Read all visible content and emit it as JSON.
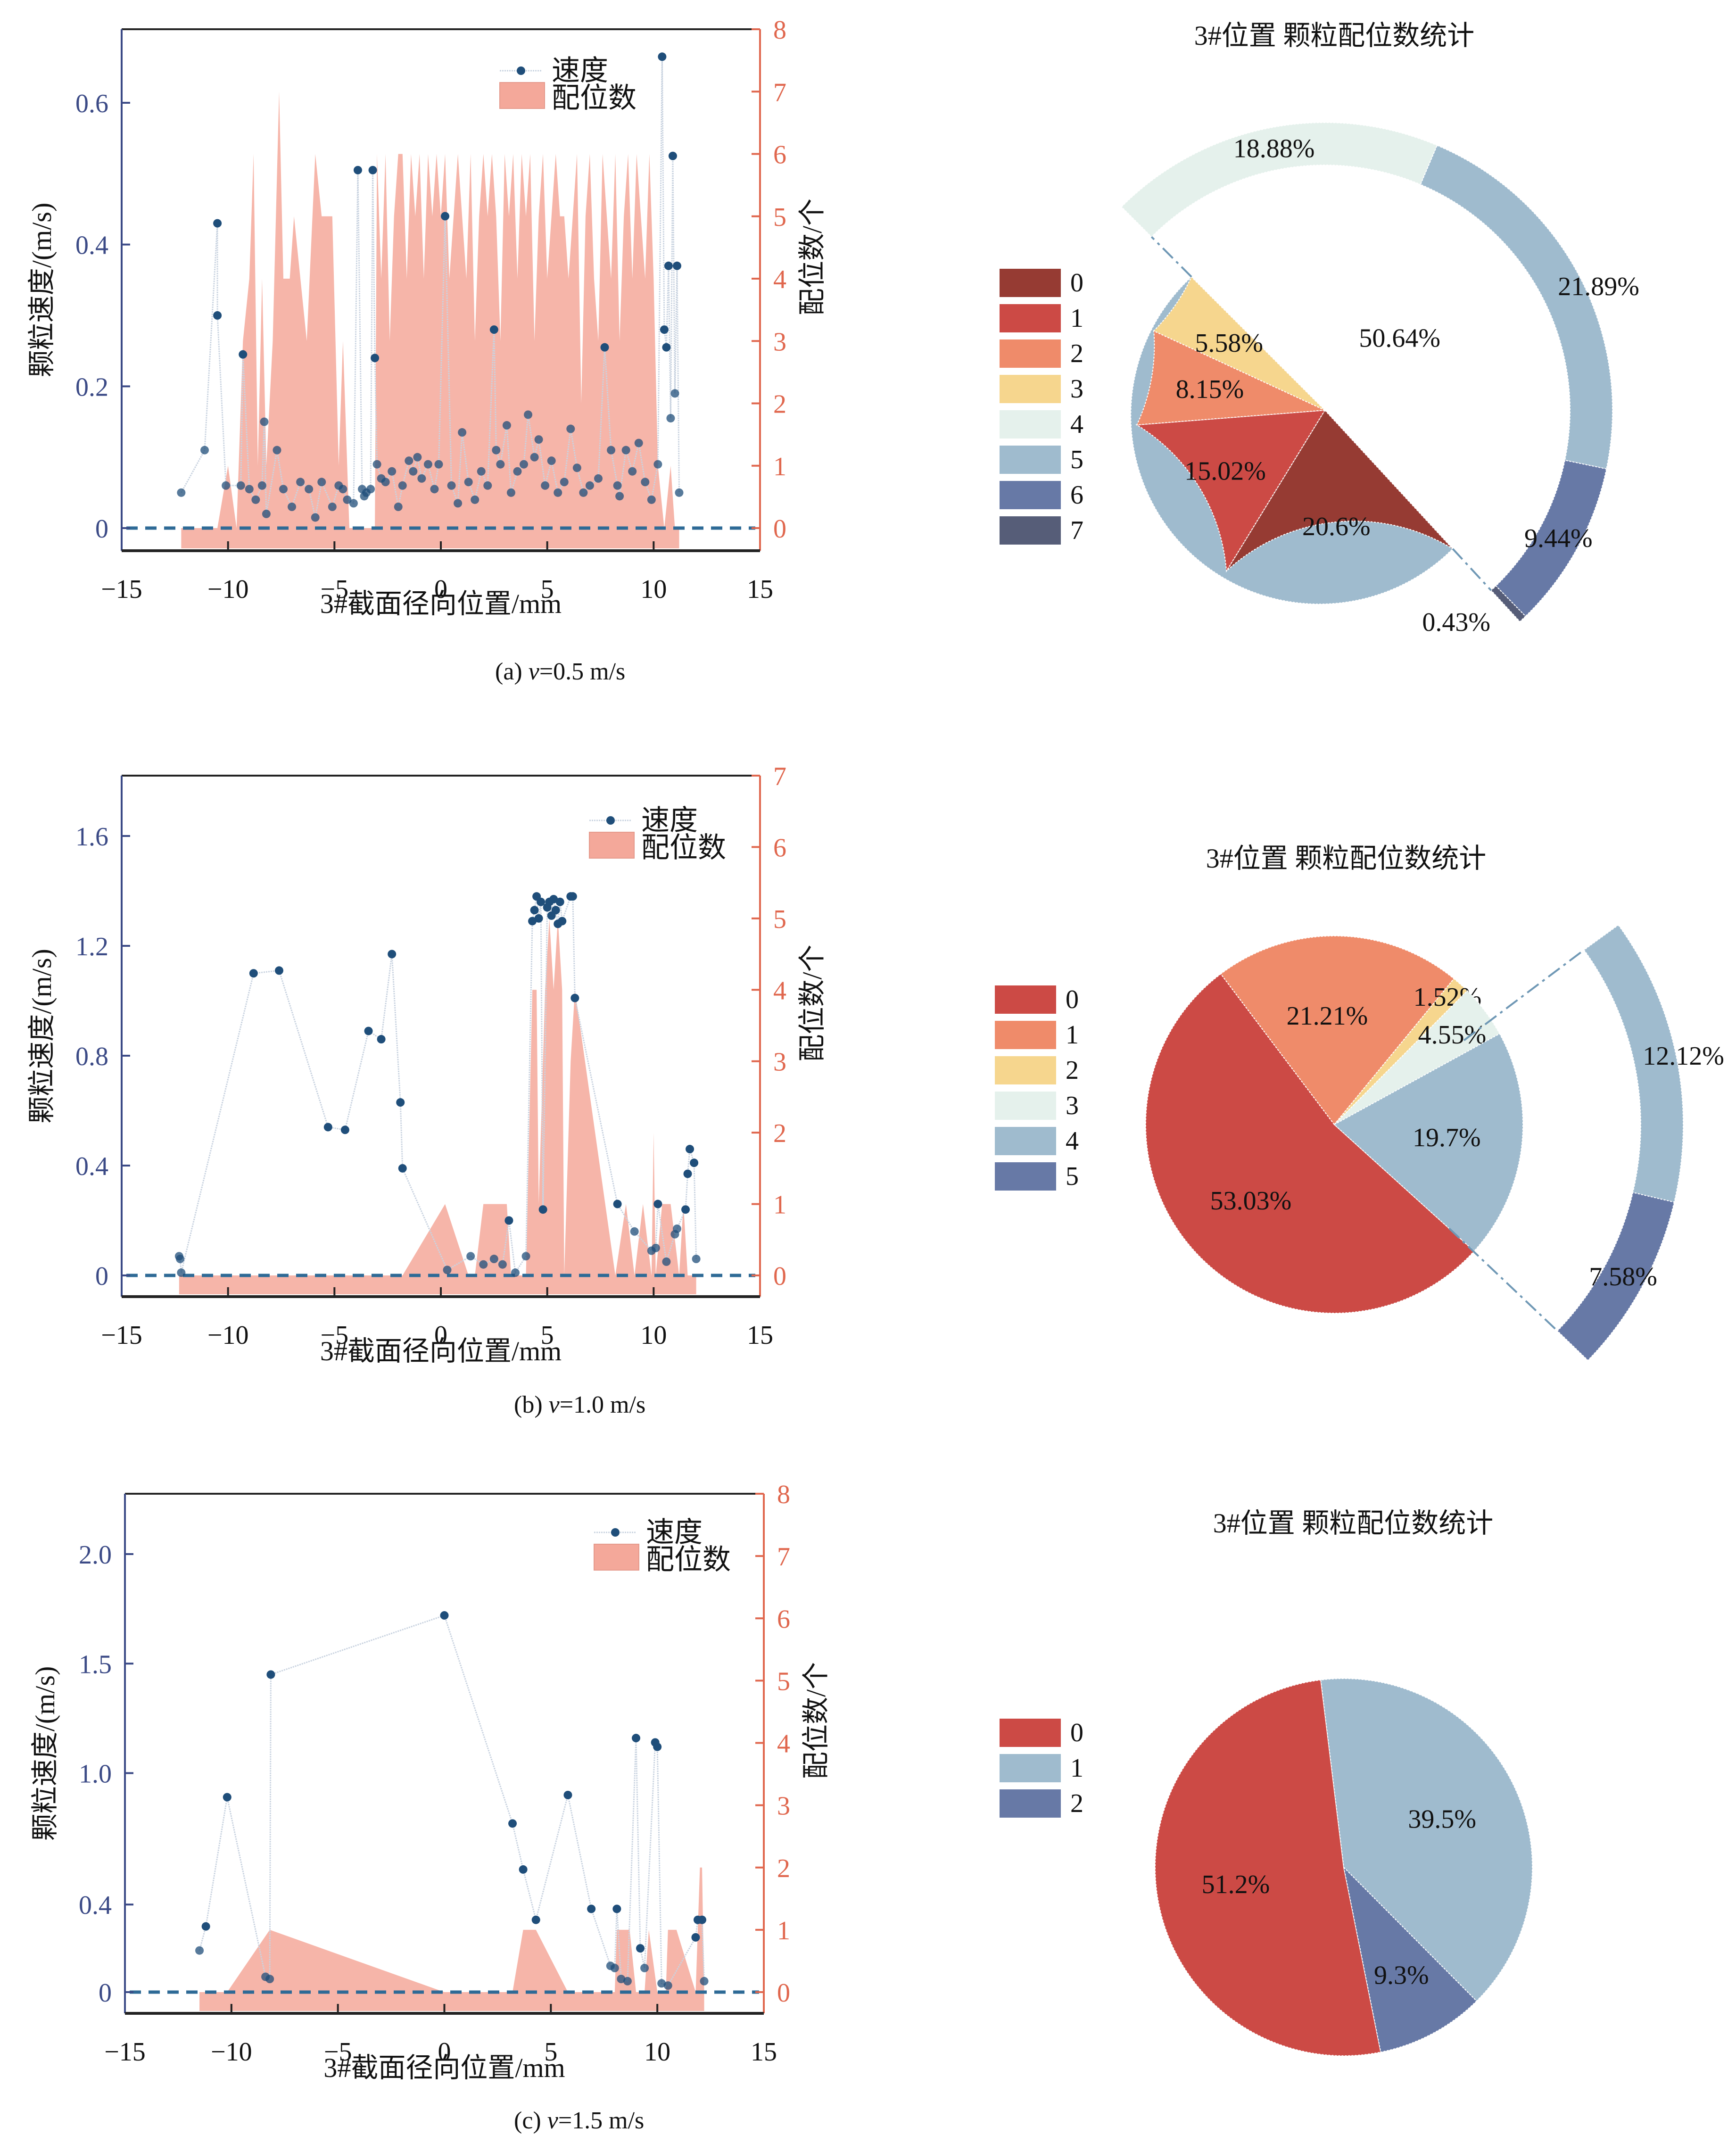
{
  "figure": {
    "panels": [
      {
        "id": "a",
        "caption_prefix": "(a) ",
        "caption_var": "v",
        "caption_suffix": "=0.5 m/s"
      },
      {
        "id": "b",
        "caption_prefix": "(b) ",
        "caption_var": "v",
        "caption_suffix": "=1.0 m/s"
      },
      {
        "id": "c",
        "caption_prefix": "(c) ",
        "caption_var": "v",
        "caption_suffix": "=1.5 m/s"
      }
    ]
  },
  "colors": {
    "speed_line": "#c9d3e0",
    "speed_marker": "#1f4e7a",
    "coord_fill": "#f4a89a",
    "left_axis": "#3b4a86",
    "right_axis": "#e0674e",
    "zero_line": "#2e6a96",
    "coord_palette": [
      "#963b33",
      "#cc4a45",
      "#ef8b6a",
      "#f6d68e",
      "#e5f1ec",
      "#9fbbce",
      "#6779a6",
      "#565d78"
    ]
  },
  "chart_data": [
    {
      "type": "line",
      "panel": "a",
      "title": "",
      "xlabel": "3#截面径向位置/mm",
      "ylabel": "颗粒速度/(m/s)",
      "y2label": "配位数/个",
      "xlim": [
        -15,
        15
      ],
      "ylim": [
        -0.03,
        0.72
      ],
      "y2lim": [
        -0.33,
        8
      ],
      "xticks": [
        -15,
        -10,
        -5,
        0,
        5,
        10,
        15
      ],
      "xtick_labels": [
        "−15",
        "−10",
        "−5",
        "0",
        "5",
        "10",
        "15"
      ],
      "yticks": [
        0,
        0.2,
        0.4,
        0.6
      ],
      "ytick_labels": [
        "0",
        "0.2",
        "0.4",
        "0.6"
      ],
      "y2ticks": [
        0,
        1,
        2,
        3,
        4,
        5,
        6,
        7,
        8
      ],
      "y2tick_labels": [
        "0",
        "1",
        "2",
        "3",
        "4",
        "5",
        "6",
        "7",
        "8"
      ],
      "legend": [
        "速度",
        "配位数"
      ],
      "legend_position": "top-right",
      "series": [
        {
          "name": "速度",
          "kind": "line-marker",
          "x": [
            -12.2,
            -11.1,
            -10.5,
            -10.5,
            -10.1,
            -9.4,
            -9.3,
            -9.0,
            -8.7,
            -8.4,
            -8.3,
            -8.2,
            -7.7,
            -7.4,
            -7.0,
            -6.6,
            -6.2,
            -5.9,
            -5.6,
            -5.1,
            -4.8,
            -4.6,
            -4.4,
            -4.1,
            -3.9,
            -3.7,
            -3.6,
            -3.5,
            -3.3,
            -3.2,
            -3.1,
            -3.0,
            -2.8,
            -2.6,
            -2.3,
            -2.0,
            -1.8,
            -1.5,
            -1.3,
            -1.1,
            -0.9,
            -0.6,
            -0.3,
            -0.1,
            0.2,
            0.5,
            0.8,
            1.0,
            1.3,
            1.6,
            1.9,
            2.2,
            2.5,
            2.6,
            2.8,
            3.1,
            3.3,
            3.6,
            3.9,
            4.1,
            4.4,
            4.6,
            4.9,
            5.2,
            5.5,
            5.8,
            6.1,
            6.4,
            6.7,
            7.0,
            7.4,
            7.7,
            8.0,
            8.3,
            8.4,
            8.7,
            9.0,
            9.3,
            9.6,
            9.9,
            10.2,
            10.4,
            10.5,
            10.6,
            10.7,
            10.8,
            10.9,
            11.0,
            11.1,
            11.2
          ],
          "y": [
            0.05,
            0.11,
            0.43,
            0.3,
            0.06,
            0.06,
            0.245,
            0.055,
            0.04,
            0.06,
            0.15,
            0.02,
            0.11,
            0.055,
            0.03,
            0.065,
            0.055,
            0.015,
            0.065,
            0.03,
            0.06,
            0.055,
            0.04,
            0.035,
            0.505,
            0.055,
            0.045,
            0.05,
            0.055,
            0.505,
            0.24,
            0.09,
            0.07,
            0.065,
            0.08,
            0.03,
            0.06,
            0.095,
            0.08,
            0.1,
            0.07,
            0.09,
            0.055,
            0.09,
            0.44,
            0.06,
            0.035,
            0.135,
            0.065,
            0.04,
            0.08,
            0.06,
            0.28,
            0.11,
            0.09,
            0.145,
            0.05,
            0.08,
            0.09,
            0.16,
            0.1,
            0.125,
            0.06,
            0.095,
            0.05,
            0.065,
            0.14,
            0.085,
            0.05,
            0.06,
            0.07,
            0.255,
            0.11,
            0.06,
            0.045,
            0.11,
            0.08,
            0.12,
            0.065,
            0.04,
            0.09,
            0.665,
            0.28,
            0.255,
            0.37,
            0.155,
            0.525,
            0.19,
            0.37,
            0.05
          ]
        },
        {
          "name": "配位数",
          "kind": "area",
          "x": [
            -12.2,
            -10.5,
            -10.0,
            -9.6,
            -9.3,
            -9.0,
            -8.8,
            -8.6,
            -8.4,
            -8.2,
            -7.9,
            -7.6,
            -7.4,
            -7.1,
            -6.9,
            -6.6,
            -6.3,
            -5.9,
            -5.6,
            -5.1,
            -4.8,
            -4.6,
            -4.3,
            -4.1,
            -3.9,
            -3.7,
            -3.6,
            -3.5,
            -3.3,
            -3.2,
            -3.1,
            -3.0,
            -2.9,
            -2.8,
            -2.6,
            -2.4,
            -2.2,
            -2.0,
            -1.8,
            -1.6,
            -1.4,
            -1.2,
            -1.0,
            -0.8,
            -0.6,
            -0.4,
            -0.2,
            0.0,
            0.2,
            0.4,
            0.6,
            0.8,
            1.0,
            1.2,
            1.4,
            1.6,
            1.8,
            2.0,
            2.2,
            2.4,
            2.6,
            2.8,
            3.0,
            3.2,
            3.4,
            3.6,
            3.8,
            4.0,
            4.2,
            4.4,
            4.6,
            4.8,
            5.0,
            5.2,
            5.4,
            5.6,
            5.8,
            6.0,
            6.2,
            6.4,
            6.6,
            6.8,
            7.0,
            7.2,
            7.4,
            7.6,
            7.8,
            8.0,
            8.2,
            8.4,
            8.6,
            8.8,
            9.0,
            9.2,
            9.4,
            9.6,
            9.8,
            10.0,
            10.2,
            10.5,
            10.8,
            11.0,
            11.2
          ],
          "y": [
            0,
            0,
            1,
            0,
            3,
            4,
            6,
            1,
            4,
            1,
            3,
            7,
            4,
            4,
            5,
            4,
            3,
            6,
            5,
            5,
            1,
            3,
            0,
            0,
            0,
            0,
            0,
            0,
            0,
            0,
            0,
            6,
            5,
            4,
            6,
            3,
            5,
            6,
            6,
            4,
            6,
            5,
            6,
            4,
            6,
            5,
            6,
            5,
            6,
            4,
            5,
            6,
            5,
            4,
            6,
            3,
            5,
            6,
            5,
            6,
            5,
            3,
            6,
            5,
            6,
            4,
            6,
            5,
            6,
            3,
            5,
            6,
            4,
            5,
            6,
            5,
            5,
            4,
            5,
            6,
            2,
            5,
            6,
            4,
            3,
            6,
            5,
            4,
            6,
            3,
            5,
            6,
            4,
            6,
            5,
            4,
            6,
            4,
            1,
            0,
            1,
            0,
            0
          ]
        }
      ]
    },
    {
      "type": "pie",
      "panel": "a",
      "title": "3#位置  颗粒配位数统计",
      "legend": [
        "0",
        "1",
        "2",
        "3",
        "4",
        "5",
        "6",
        "7"
      ],
      "legend_position": "left",
      "inner_pie": {
        "labels": [
          "0",
          "1",
          "2",
          "3",
          "5"
        ],
        "values": [
          20.6,
          15.02,
          8.15,
          5.58,
          50.64
        ],
        "value_labels": [
          "20.6%",
          "15.02%",
          "8.15%",
          "5.58%",
          "50.64%"
        ],
        "color_index": [
          0,
          1,
          2,
          3,
          5
        ]
      },
      "outer_ring": {
        "note": "breakdown of combined slice into 4-7",
        "labels": [
          "4",
          "5",
          "6",
          "7"
        ],
        "values": [
          18.88,
          21.89,
          9.44,
          0.43
        ],
        "value_labels": [
          "18.88%",
          "21.89%",
          "9.44%",
          "0.43%"
        ],
        "color_index": [
          4,
          5,
          6,
          7
        ]
      }
    },
    {
      "type": "line",
      "panel": "b",
      "title": "",
      "xlabel": "3#截面径向位置/mm",
      "ylabel": "颗粒速度/(m/s)",
      "y2label": "配位数/个",
      "xlim": [
        -15,
        15
      ],
      "ylim": [
        -0.06,
        1.8
      ],
      "y2lim": [
        -0.25,
        7
      ],
      "xticks": [
        -15,
        -10,
        -5,
        0,
        5,
        10,
        15
      ],
      "xtick_labels": [
        "−15",
        "−10",
        "−5",
        "0",
        "5",
        "10",
        "15"
      ],
      "yticks": [
        0,
        0.4,
        0.8,
        1.2,
        1.6
      ],
      "ytick_labels": [
        "0",
        "0.4",
        "0.8",
        "1.2",
        "1.6"
      ],
      "y2ticks": [
        0,
        1,
        2,
        3,
        4,
        5,
        6,
        7
      ],
      "y2tick_labels": [
        "0",
        "1",
        "2",
        "3",
        "4",
        "5",
        "6",
        "7"
      ],
      "legend": [
        "速度",
        "配位数"
      ],
      "legend_position": "top-right",
      "series": [
        {
          "name": "速度",
          "kind": "line-marker",
          "x": [
            -12.3,
            -12.25,
            -12.2,
            -8.8,
            -7.6,
            -5.3,
            -4.5,
            -3.4,
            -2.8,
            -2.3,
            -1.9,
            -1.8,
            0.3,
            1.4,
            2.0,
            2.5,
            2.9,
            3.2,
            3.5,
            4.0,
            4.3,
            4.4,
            4.5,
            4.6,
            4.7,
            4.8,
            5.0,
            5.1,
            5.2,
            5.3,
            5.4,
            5.5,
            5.6,
            5.7,
            6.1,
            6.2,
            6.3,
            8.3,
            9.1,
            9.9,
            10.1,
            10.2,
            10.6,
            11.0,
            11.1,
            11.5,
            11.6,
            11.7,
            11.9,
            12.0
          ],
          "y": [
            0.07,
            0.06,
            0.01,
            1.1,
            1.11,
            0.54,
            0.53,
            0.89,
            0.86,
            1.17,
            0.63,
            0.39,
            0.02,
            0.07,
            0.04,
            0.06,
            0.04,
            0.2,
            0.01,
            0.07,
            1.29,
            1.33,
            1.38,
            1.3,
            1.36,
            0.24,
            1.34,
            1.36,
            1.31,
            1.37,
            1.33,
            1.28,
            1.36,
            1.29,
            1.38,
            1.38,
            1.01,
            0.26,
            0.16,
            0.09,
            0.1,
            0.26,
            0.05,
            0.15,
            0.17,
            0.24,
            0.37,
            0.46,
            0.41,
            0.06
          ]
        },
        {
          "name": "配位数",
          "kind": "area",
          "x": [
            -12.3,
            -1.8,
            0.2,
            1.3,
            1.6,
            2.0,
            3.1,
            3.3,
            4.0,
            4.3,
            4.5,
            4.6,
            4.9,
            5.1,
            5.3,
            5.5,
            5.7,
            5.8,
            6.1,
            6.3,
            8.2,
            8.7,
            9.1,
            9.5,
            9.9,
            10.0,
            10.1,
            10.4,
            10.5,
            10.8,
            11.2,
            11.4,
            11.6,
            12.0
          ],
          "y": [
            0,
            0,
            1,
            0,
            0,
            1,
            1,
            0,
            0,
            4,
            4,
            1,
            4,
            5,
            4,
            5,
            4,
            0,
            3,
            4,
            0,
            1,
            0,
            1,
            0,
            2,
            0,
            1,
            1,
            1,
            0,
            1,
            0,
            0
          ]
        }
      ]
    },
    {
      "type": "pie",
      "panel": "b",
      "title": "3#位置  颗粒配位数统计",
      "legend": [
        "0",
        "1",
        "2",
        "3",
        "4",
        "5"
      ],
      "legend_position": "left",
      "inner_pie": {
        "labels": [
          "0",
          "1",
          "2",
          "3",
          "4"
        ],
        "values": [
          53.03,
          21.21,
          1.52,
          4.55,
          19.7
        ],
        "value_labels": [
          "53.03%",
          "21.21%",
          "1.52%",
          "4.55%",
          "19.7%"
        ],
        "color_index": [
          1,
          2,
          3,
          4,
          5
        ]
      },
      "outer_ring": {
        "note": "breakdown of combined slice into 4-5",
        "labels": [
          "4",
          "5"
        ],
        "values": [
          12.12,
          7.58
        ],
        "value_labels": [
          "12.12%",
          "7.58%"
        ],
        "color_index": [
          5,
          6
        ]
      }
    },
    {
      "type": "line",
      "panel": "c",
      "title": "",
      "xlabel": "3#截面径向位置/mm",
      "ylabel": "颗粒速度/(m/s)",
      "y2label": "配位数/个",
      "xlim": [
        -15,
        15
      ],
      "ylim": [
        -0.07,
        2.2
      ],
      "y2lim": [
        -0.27,
        8
      ],
      "xticks": [
        -15,
        -10,
        -5,
        0,
        5,
        10,
        15
      ],
      "xtick_labels": [
        "−15",
        "−10",
        "−5",
        "0",
        "5",
        "10",
        "15"
      ],
      "yticks": [
        0,
        0.4,
        1.0,
        1.5,
        2.0
      ],
      "ytick_labels": [
        "0",
        "0.4",
        "1.0",
        "1.5",
        "2.0"
      ],
      "y2ticks": [
        0,
        1,
        2,
        3,
        4,
        5,
        6,
        7,
        8
      ],
      "y2tick_labels": [
        "0",
        "1",
        "2",
        "3",
        "4",
        "5",
        "6",
        "7",
        "8"
      ],
      "legend": [
        "速度",
        "配位数"
      ],
      "legend_position": "top-right",
      "series": [
        {
          "name": "速度",
          "kind": "line-marker",
          "x": [
            -11.5,
            -11.2,
            -10.2,
            -8.4,
            -8.2,
            -8.15,
            0.0,
            3.2,
            3.7,
            4.3,
            5.8,
            6.9,
            7.8,
            8.0,
            8.1,
            8.3,
            8.6,
            9.0,
            9.2,
            9.4,
            9.9,
            10.0,
            10.2,
            10.5,
            11.8,
            11.9,
            12.1,
            12.2
          ],
          "y": [
            0.19,
            0.3,
            0.89,
            0.07,
            0.06,
            1.45,
            1.72,
            0.77,
            0.56,
            0.33,
            0.9,
            0.38,
            0.12,
            0.11,
            0.38,
            0.06,
            0.05,
            1.16,
            0.2,
            0.11,
            1.14,
            1.12,
            0.04,
            0.03,
            0.25,
            0.33,
            0.33,
            0.05
          ]
        },
        {
          "name": "配位数",
          "kind": "area",
          "x": [
            -11.5,
            -10.2,
            -8.2,
            0.0,
            3.2,
            3.7,
            4.3,
            5.8,
            8.0,
            8.1,
            8.7,
            9.0,
            9.4,
            9.6,
            10.0,
            10.4,
            10.5,
            10.9,
            11.8,
            12.0,
            12.1,
            12.2
          ],
          "y": [
            0,
            0,
            1,
            0,
            0,
            1,
            1,
            0,
            0,
            1,
            1,
            0,
            0,
            1,
            0,
            0,
            1,
            1,
            0,
            2,
            2,
            0
          ]
        }
      ]
    },
    {
      "type": "pie",
      "panel": "c",
      "title": "3#位置  颗粒配位数统计",
      "legend": [
        "0",
        "1",
        "2"
      ],
      "legend_position": "left",
      "inner_pie": {
        "labels": [
          "0",
          "1",
          "2"
        ],
        "values": [
          51.2,
          39.5,
          9.3
        ],
        "value_labels": [
          "51.2%",
          "39.5%",
          "9.3%"
        ],
        "color_index": [
          1,
          5,
          6
        ]
      }
    }
  ]
}
